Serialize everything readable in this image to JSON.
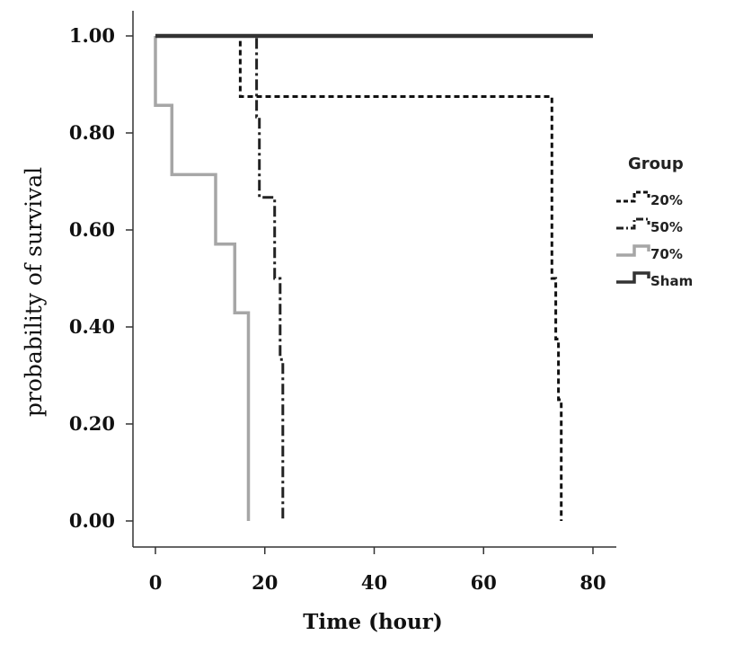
{
  "chart_data": {
    "type": "line",
    "step": true,
    "xlabel": "Time (hour)",
    "ylabel": "probability of survival",
    "xlim": [
      -4,
      84
    ],
    "ylim": [
      -0.05,
      1.06
    ],
    "xticks": [
      0,
      20,
      40,
      60,
      80
    ],
    "xtick_labels": [
      "0",
      "20",
      "40",
      "60",
      "80"
    ],
    "yticks": [
      0,
      0.2,
      0.4,
      0.6,
      0.8,
      1.0
    ],
    "ytick_labels": [
      "0.00",
      "0.20",
      "0.40",
      "0.60",
      "0.80",
      "1.00"
    ],
    "legend_title": "Group",
    "legend_position": "right",
    "grid": false,
    "series": [
      {
        "name": "20%",
        "style": "dashed",
        "color": "#111111",
        "x": [
          0,
          15.5,
          15.5,
          72.5,
          72.5,
          73.2,
          73.2,
          73.7,
          73.7,
          74.2,
          74.2
        ],
        "y": [
          1.0,
          1.0,
          0.875,
          0.875,
          0.5,
          0.5,
          0.375,
          0.375,
          0.25,
          0.25,
          0.0
        ]
      },
      {
        "name": "50%",
        "style": "dash-dot",
        "color": "#222222",
        "x": [
          0,
          18.5,
          18.5,
          19.0,
          19.0,
          21.8,
          21.8,
          22.8,
          22.8,
          23.3,
          23.3
        ],
        "y": [
          1.0,
          1.0,
          0.833,
          0.833,
          0.667,
          0.667,
          0.5,
          0.5,
          0.333,
          0.333,
          0.0
        ]
      },
      {
        "name": "70%",
        "style": "solid",
        "color": "#a6a6a6",
        "x": [
          0,
          0,
          3.0,
          3.0,
          11.0,
          11.0,
          14.5,
          14.5,
          17.0,
          17.0
        ],
        "y": [
          1.0,
          0.857,
          0.857,
          0.714,
          0.714,
          0.571,
          0.571,
          0.429,
          0.429,
          0.0
        ]
      },
      {
        "name": "Sham",
        "style": "solid",
        "color": "#333333",
        "x": [
          0,
          80
        ],
        "y": [
          1.0,
          1.0
        ]
      }
    ]
  }
}
